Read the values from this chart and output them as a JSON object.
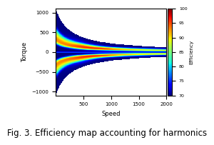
{
  "title": "Fig. 3. Efficiency map accounting for harmonics",
  "xlabel": "Speed",
  "ylabel": "Torque",
  "colorbar_label": "Efficiency",
  "speed_min": 0,
  "speed_max": 2000,
  "torque_min": -1100,
  "torque_max": 1100,
  "xticks": [
    500,
    1000,
    1500,
    2000
  ],
  "yticks": [
    -1000,
    -500,
    0,
    500,
    1000
  ],
  "colorbar_ticks": [
    70,
    75,
    80,
    85,
    90,
    95,
    100
  ],
  "efficiency_min": 70,
  "efficiency_max": 100,
  "background_color": "#ffffff",
  "title_fontsize": 8.5
}
